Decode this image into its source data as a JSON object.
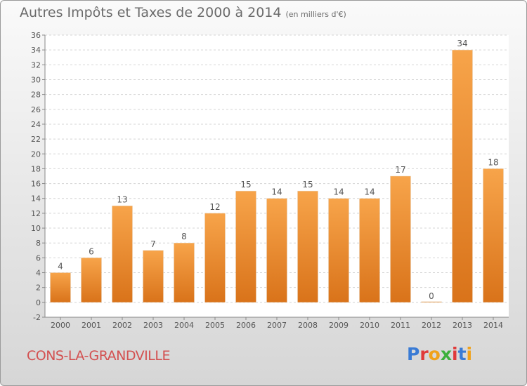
{
  "header": {
    "title": "Autres Impôts et Taxes de 2000 à 2014",
    "unit": "(en milliers d'€)"
  },
  "commune": "CONS-LA-GRANDVILLE",
  "brand": {
    "letters": [
      "P",
      "r",
      "o",
      "x",
      "i",
      "t",
      "i"
    ],
    "colors": [
      "#3a7bd5",
      "#e03a3a",
      "#f0a21a",
      "#3ab03a",
      "#e03a3a",
      "#3a7bd5",
      "#f0a21a"
    ]
  },
  "chart_data": {
    "type": "bar",
    "categories": [
      "2000",
      "2001",
      "2002",
      "2003",
      "2004",
      "2005",
      "2006",
      "2007",
      "2008",
      "2009",
      "2010",
      "2011",
      "2012",
      "2013",
      "2014"
    ],
    "values": [
      4,
      6,
      13,
      7,
      8,
      12,
      15,
      14,
      15,
      14,
      14,
      17,
      0,
      34,
      18
    ],
    "title": "Autres Impôts et Taxes de 2000 à 2014",
    "subtitle": "(en milliers d'€)",
    "ylim": [
      -2,
      36
    ],
    "yticks": [
      -2,
      0,
      2,
      4,
      6,
      8,
      10,
      12,
      14,
      16,
      18,
      20,
      22,
      24,
      26,
      28,
      30,
      32,
      34,
      36
    ],
    "grid": "horizontal",
    "bar_color": "#f08a24"
  }
}
